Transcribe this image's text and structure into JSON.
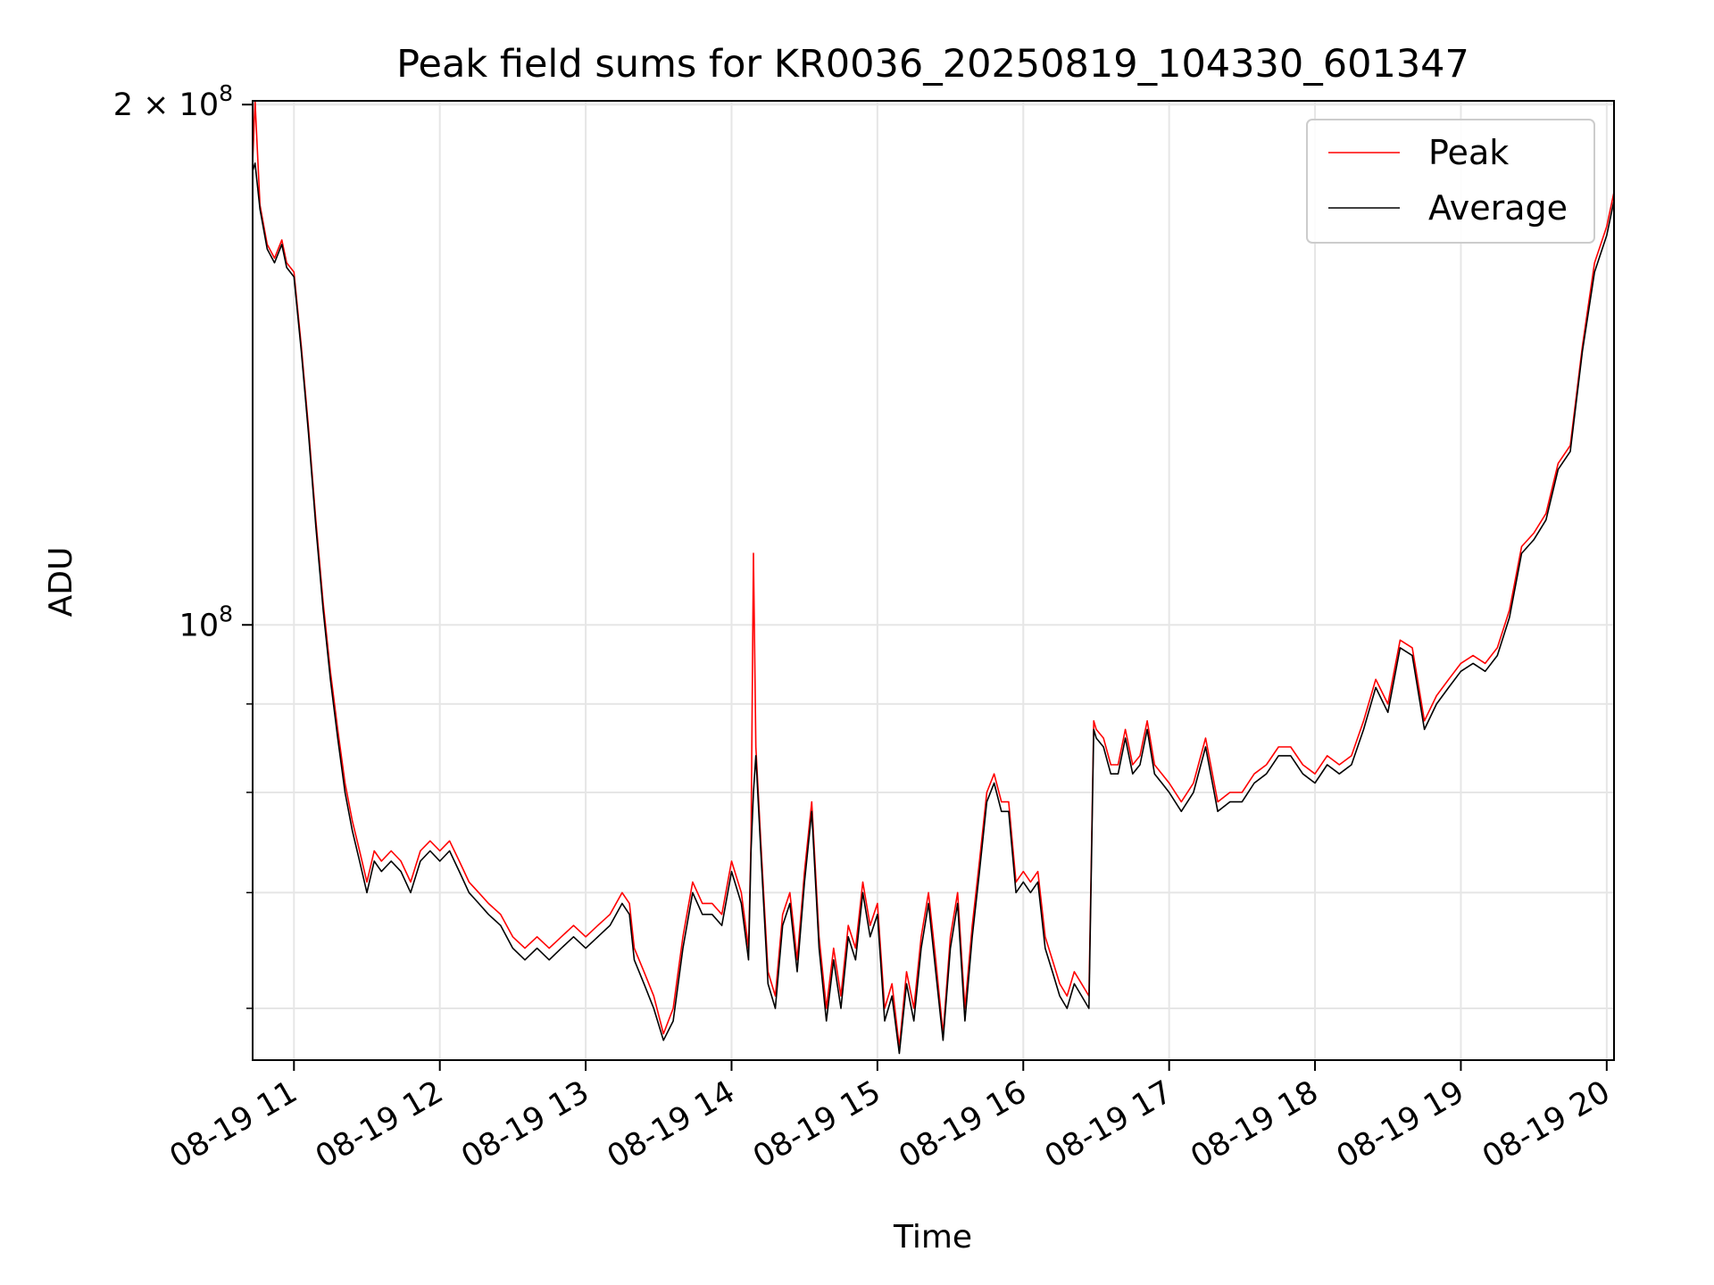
{
  "chart_data": {
    "type": "line",
    "title": "Peak field sums for KR0036_20250819_104330_601347",
    "xlabel": "Time",
    "ylabel": "ADU",
    "yscale": "log",
    "grid": true,
    "legend_position": "top-right",
    "xlim": [
      "2025-08-19 10:43",
      "2025-08-19 20:03"
    ],
    "ylim": [
      56000000,
      201000000
    ],
    "x_ticks": [
      {
        "label": "08-19 11",
        "time": "2025-08-19 11:00"
      },
      {
        "label": "08-19 12",
        "time": "2025-08-19 12:00"
      },
      {
        "label": "08-19 13",
        "time": "2025-08-19 13:00"
      },
      {
        "label": "08-19 14",
        "time": "2025-08-19 14:00"
      },
      {
        "label": "08-19 15",
        "time": "2025-08-19 15:00"
      },
      {
        "label": "08-19 16",
        "time": "2025-08-19 16:00"
      },
      {
        "label": "08-19 17",
        "time": "2025-08-19 17:00"
      },
      {
        "label": "08-19 18",
        "time": "2025-08-19 18:00"
      },
      {
        "label": "08-19 19",
        "time": "2025-08-19 19:00"
      },
      {
        "label": "08-19 20",
        "time": "2025-08-19 20:00"
      }
    ],
    "y_ticks_major": [
      {
        "base": "10",
        "exponent": "8",
        "value": 100000000
      },
      {
        "coef": "2",
        "times": "×",
        "base": "10",
        "exponent": "8",
        "value": 200000000
      }
    ],
    "y_ticks_minor": [
      60000000,
      70000000,
      80000000,
      90000000
    ],
    "series": [
      {
        "name": "Peak",
        "color": "#ff0000",
        "x": [
          "10:43",
          "10:44",
          "10:46",
          "10:49",
          "10:52",
          "10:55",
          "10:57",
          "11:00",
          "11:03",
          "11:06",
          "11:09",
          "11:12",
          "11:15",
          "11:18",
          "11:21",
          "11:24",
          "11:27",
          "11:30",
          "11:33",
          "11:36",
          "11:40",
          "11:44",
          "11:48",
          "11:52",
          "11:56",
          "12:00",
          "12:04",
          "12:08",
          "12:12",
          "12:16",
          "12:20",
          "12:25",
          "12:30",
          "12:35",
          "12:40",
          "12:45",
          "12:50",
          "12:55",
          "13:00",
          "13:05",
          "13:10",
          "13:15",
          "13:18",
          "13:20",
          "13:24",
          "13:28",
          "13:32",
          "13:36",
          "13:40",
          "13:44",
          "13:48",
          "13:52",
          "13:56",
          "14:00",
          "14:04",
          "14:07",
          "14:08",
          "14:09",
          "14:10",
          "14:12",
          "14:15",
          "14:18",
          "14:21",
          "14:24",
          "14:27",
          "14:30",
          "14:33",
          "14:36",
          "14:39",
          "14:42",
          "14:45",
          "14:48",
          "14:51",
          "14:54",
          "14:57",
          "15:00",
          "15:03",
          "15:06",
          "15:09",
          "15:12",
          "15:15",
          "15:18",
          "15:21",
          "15:24",
          "15:27",
          "15:30",
          "15:33",
          "15:36",
          "15:39",
          "15:42",
          "15:45",
          "15:48",
          "15:51",
          "15:54",
          "15:57",
          "16:00",
          "16:03",
          "16:06",
          "16:09",
          "16:12",
          "16:15",
          "16:18",
          "16:21",
          "16:24",
          "16:27",
          "16:29",
          "16:30",
          "16:33",
          "16:36",
          "16:39",
          "16:42",
          "16:45",
          "16:48",
          "16:51",
          "16:54",
          "16:57",
          "17:00",
          "17:05",
          "17:10",
          "17:15",
          "17:20",
          "17:25",
          "17:30",
          "17:35",
          "17:40",
          "17:45",
          "17:50",
          "17:55",
          "18:00",
          "18:05",
          "18:10",
          "18:15",
          "18:20",
          "18:25",
          "18:30",
          "18:35",
          "18:40",
          "18:45",
          "18:50",
          "18:55",
          "19:00",
          "19:05",
          "19:10",
          "19:15",
          "19:20",
          "19:25",
          "19:30",
          "19:35",
          "19:40",
          "19:45",
          "19:50",
          "19:55",
          "20:00",
          "20:03"
        ],
        "y": [
          185000000,
          201000000,
          175000000,
          166000000,
          163000000,
          167000000,
          162000000,
          160000000,
          145000000,
          130000000,
          115000000,
          103000000,
          94000000,
          87000000,
          81000000,
          77000000,
          74000000,
          71000000,
          74000000,
          73000000,
          74000000,
          73000000,
          71000000,
          74000000,
          75000000,
          74000000,
          75000000,
          73000000,
          71000000,
          70000000,
          69000000,
          68000000,
          66000000,
          65000000,
          66000000,
          65000000,
          66000000,
          67000000,
          66000000,
          67000000,
          68000000,
          70000000,
          69000000,
          65000000,
          63000000,
          61000000,
          58000000,
          60000000,
          66000000,
          71000000,
          69000000,
          69000000,
          68000000,
          73000000,
          70000000,
          65000000,
          75000000,
          110000000,
          85000000,
          75000000,
          63000000,
          61000000,
          68000000,
          70000000,
          64000000,
          72000000,
          79000000,
          66000000,
          60000000,
          65000000,
          61000000,
          67000000,
          65000000,
          71000000,
          67000000,
          69000000,
          60000000,
          62000000,
          57000000,
          63000000,
          60000000,
          66000000,
          70000000,
          64000000,
          58000000,
          66000000,
          70000000,
          60000000,
          67000000,
          73000000,
          80000000,
          82000000,
          79000000,
          79000000,
          71000000,
          72000000,
          71000000,
          72000000,
          66000000,
          64000000,
          62000000,
          61000000,
          63000000,
          62000000,
          61000000,
          88000000,
          87000000,
          86000000,
          83000000,
          83000000,
          87000000,
          83000000,
          84000000,
          88000000,
          83000000,
          82000000,
          81000000,
          79000000,
          81000000,
          86000000,
          79000000,
          80000000,
          80000000,
          82000000,
          83000000,
          85000000,
          85000000,
          83000000,
          82000000,
          84000000,
          83000000,
          84000000,
          88000000,
          93000000,
          90000000,
          98000000,
          97000000,
          88000000,
          91000000,
          93000000,
          95000000,
          96000000,
          95000000,
          97000000,
          102000000,
          111000000,
          113000000,
          116000000,
          124000000,
          127000000,
          145000000,
          162000000,
          170000000,
          178000000
        ]
      },
      {
        "name": "Average",
        "color": "#000000",
        "x": [
          "10:43",
          "10:44",
          "10:46",
          "10:49",
          "10:52",
          "10:55",
          "10:57",
          "11:00",
          "11:03",
          "11:06",
          "11:09",
          "11:12",
          "11:15",
          "11:18",
          "11:21",
          "11:24",
          "11:27",
          "11:30",
          "11:33",
          "11:36",
          "11:40",
          "11:44",
          "11:48",
          "11:52",
          "11:56",
          "12:00",
          "12:04",
          "12:08",
          "12:12",
          "12:16",
          "12:20",
          "12:25",
          "12:30",
          "12:35",
          "12:40",
          "12:45",
          "12:50",
          "12:55",
          "13:00",
          "13:05",
          "13:10",
          "13:15",
          "13:18",
          "13:20",
          "13:24",
          "13:28",
          "13:32",
          "13:36",
          "13:40",
          "13:44",
          "13:48",
          "13:52",
          "13:56",
          "14:00",
          "14:04",
          "14:07",
          "14:08",
          "14:09",
          "14:10",
          "14:12",
          "14:15",
          "14:18",
          "14:21",
          "14:24",
          "14:27",
          "14:30",
          "14:33",
          "14:36",
          "14:39",
          "14:42",
          "14:45",
          "14:48",
          "14:51",
          "14:54",
          "14:57",
          "15:00",
          "15:03",
          "15:06",
          "15:09",
          "15:12",
          "15:15",
          "15:18",
          "15:21",
          "15:24",
          "15:27",
          "15:30",
          "15:33",
          "15:36",
          "15:39",
          "15:42",
          "15:45",
          "15:48",
          "15:51",
          "15:54",
          "15:57",
          "16:00",
          "16:03",
          "16:06",
          "16:09",
          "16:12",
          "16:15",
          "16:18",
          "16:21",
          "16:24",
          "16:27",
          "16:29",
          "16:30",
          "16:33",
          "16:36",
          "16:39",
          "16:42",
          "16:45",
          "16:48",
          "16:51",
          "16:54",
          "16:57",
          "17:00",
          "17:05",
          "17:10",
          "17:15",
          "17:20",
          "17:25",
          "17:30",
          "17:35",
          "17:40",
          "17:45",
          "17:50",
          "17:55",
          "18:00",
          "18:05",
          "18:10",
          "18:15",
          "18:20",
          "18:25",
          "18:30",
          "18:35",
          "18:40",
          "18:45",
          "18:50",
          "18:55",
          "19:00",
          "19:05",
          "19:10",
          "19:15",
          "19:20",
          "19:25",
          "19:30",
          "19:35",
          "19:40",
          "19:45",
          "19:50",
          "19:55",
          "20:00",
          "20:03"
        ],
        "y": [
          183000000,
          185000000,
          174000000,
          165000000,
          162000000,
          166000000,
          161000000,
          159000000,
          144000000,
          129000000,
          114000000,
          102000000,
          93000000,
          86000000,
          80000000,
          76000000,
          73000000,
          70000000,
          73000000,
          72000000,
          73000000,
          72000000,
          70000000,
          73000000,
          74000000,
          73000000,
          74000000,
          72000000,
          70000000,
          69000000,
          68000000,
          67000000,
          65000000,
          64000000,
          65000000,
          64000000,
          65000000,
          66000000,
          65000000,
          66000000,
          67000000,
          69000000,
          68000000,
          64000000,
          62000000,
          60000000,
          57500000,
          59000000,
          65000000,
          70000000,
          68000000,
          68000000,
          67000000,
          72000000,
          69000000,
          64000000,
          74000000,
          80000000,
          84000000,
          74000000,
          62000000,
          60000000,
          67000000,
          69000000,
          63000000,
          71000000,
          78000000,
          65000000,
          59000000,
          64000000,
          60000000,
          66000000,
          64000000,
          70000000,
          66000000,
          68000000,
          59000000,
          61000000,
          56500000,
          62000000,
          59000000,
          65000000,
          69000000,
          63000000,
          57500000,
          65000000,
          69000000,
          59000000,
          66000000,
          72000000,
          79000000,
          81000000,
          78000000,
          78000000,
          70000000,
          71000000,
          70000000,
          71000000,
          65000000,
          63000000,
          61000000,
          60000000,
          62000000,
          61000000,
          60000000,
          87000000,
          86000000,
          85000000,
          82000000,
          82000000,
          86000000,
          82000000,
          83000000,
          87000000,
          82000000,
          81000000,
          80000000,
          78000000,
          80000000,
          85000000,
          78000000,
          79000000,
          79000000,
          81000000,
          82000000,
          84000000,
          84000000,
          82000000,
          81000000,
          83000000,
          82000000,
          83000000,
          87000000,
          92000000,
          89000000,
          97000000,
          96000000,
          87000000,
          90000000,
          92000000,
          94000000,
          95000000,
          94000000,
          96000000,
          101000000,
          110000000,
          112000000,
          115000000,
          123000000,
          126000000,
          144000000,
          160000000,
          168000000,
          176000000
        ]
      }
    ]
  }
}
